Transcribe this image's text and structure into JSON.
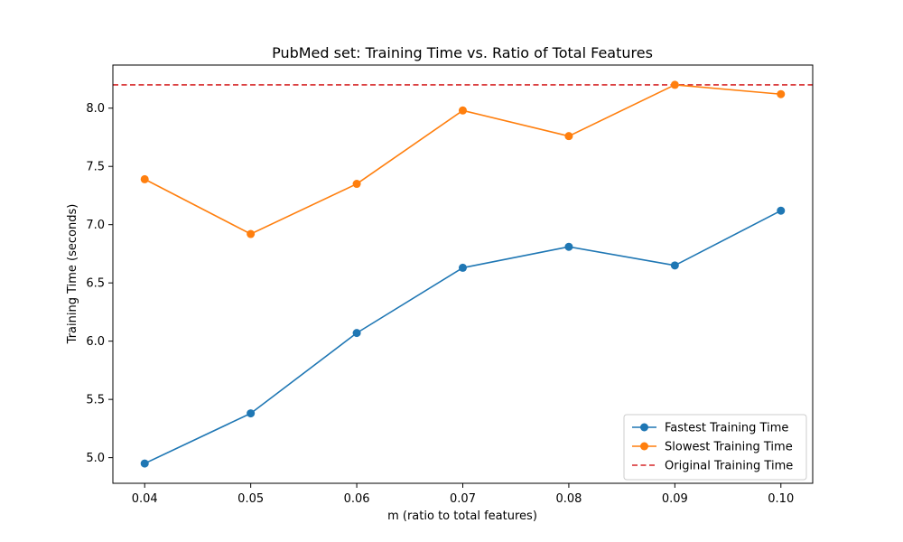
{
  "chart_data": {
    "type": "line",
    "title": "PubMed set: Training Time vs. Ratio of Total Features",
    "xlabel": "m (ratio to total features)",
    "ylabel": "Training Time (seconds)",
    "x": [
      0.04,
      0.05,
      0.06,
      0.07,
      0.08,
      0.09,
      0.1
    ],
    "x_tick_labels": [
      "0.04",
      "0.05",
      "0.06",
      "0.07",
      "0.08",
      "0.09",
      "0.10"
    ],
    "y_ticks": [
      5.0,
      5.5,
      6.0,
      6.5,
      7.0,
      7.5,
      8.0
    ],
    "y_tick_labels": [
      "5.0",
      "5.5",
      "6.0",
      "6.5",
      "7.0",
      "7.5",
      "8.0"
    ],
    "xlim": [
      0.037,
      0.103
    ],
    "ylim": [
      4.78,
      8.37
    ],
    "grid": false,
    "legend_position": "lower-right",
    "series": [
      {
        "name": "Fastest Training Time",
        "color": "#1f77b4",
        "values": [
          4.95,
          5.38,
          6.07,
          6.63,
          6.81,
          6.65,
          7.12
        ]
      },
      {
        "name": "Slowest Training Time",
        "color": "#ff7f0e",
        "values": [
          7.39,
          6.92,
          7.35,
          7.98,
          7.76,
          8.2,
          8.12
        ]
      }
    ],
    "reference_lines": [
      {
        "name": "Original Training Time",
        "color": "#d62728",
        "style": "dashed",
        "y": 8.2
      }
    ]
  }
}
